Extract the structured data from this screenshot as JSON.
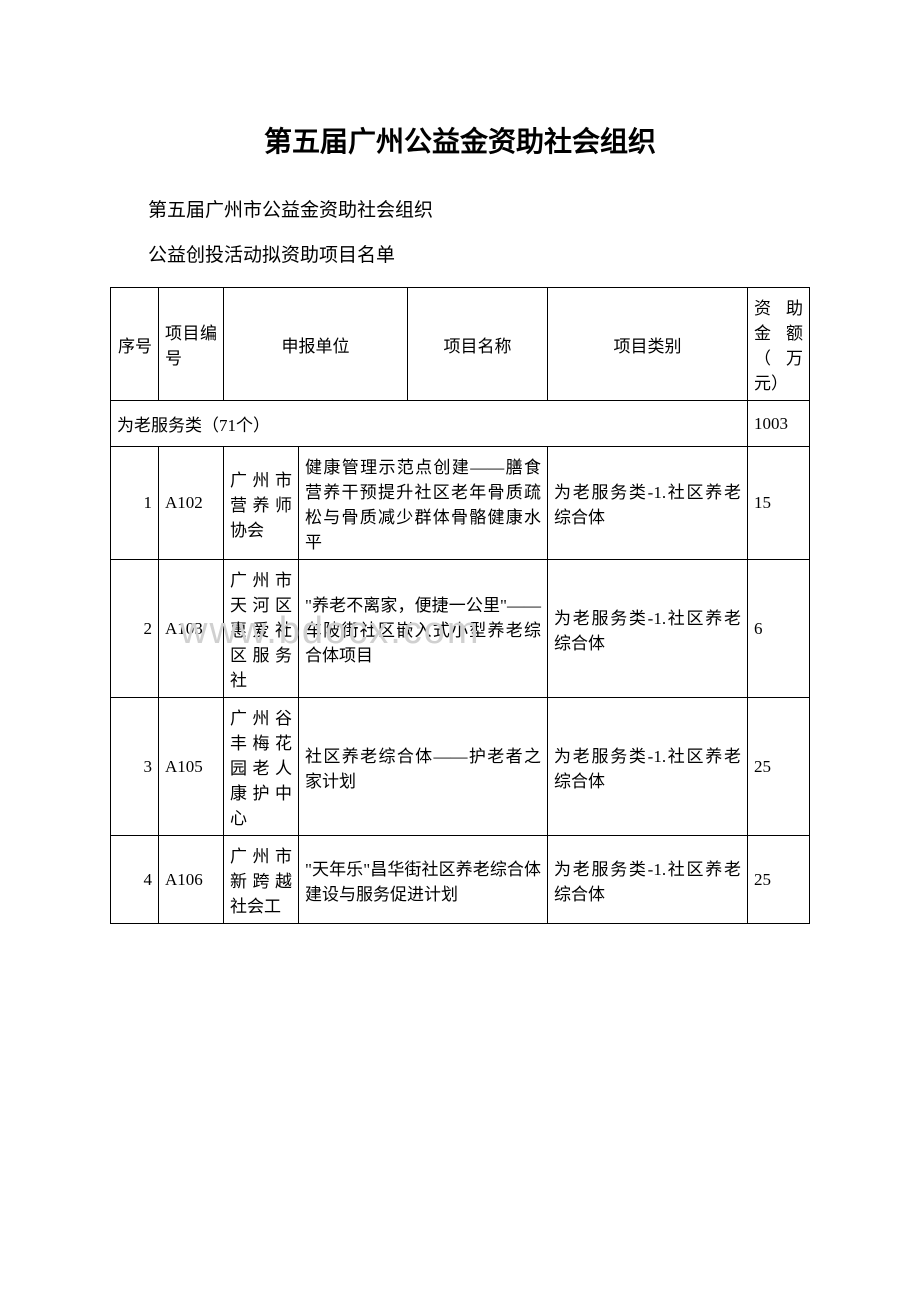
{
  "title": "第五届广州公益金资助社会组织",
  "subtitle_line1": "第五届广州市公益金资助社会组织",
  "subtitle_line2": "公益创投活动拟资助项目名单",
  "watermark": "www.bdocx.com",
  "headers": {
    "seq": "序号",
    "code": "项目编号",
    "org": "申报单位",
    "project": "项目名称",
    "category": "项目类别",
    "amount": "资助金额（万元）"
  },
  "category_row": {
    "label": "为老服务类（71个）",
    "total": "1003"
  },
  "rows": [
    {
      "seq": "1",
      "code": "A102",
      "org": "广州市营养师协会",
      "project": "健康管理示范点创建——膳食营养干预提升社区老年骨质疏松与骨质减少群体骨骼健康水平",
      "category": "为老服务类-1.社区养老综合体",
      "amount": "15"
    },
    {
      "seq": "2",
      "code": "A103",
      "org": "广州市天河区惠爱社区服务社",
      "project": "\"养老不离家，便捷一公里\"——车陂街社区嵌入式小型养老综合体项目",
      "category": "为老服务类-1.社区养老综合体",
      "amount": "6"
    },
    {
      "seq": "3",
      "code": "A105",
      "org": "广州谷丰梅花园老人康护中心",
      "project": "社区养老综合体——护老者之家计划",
      "category": "为老服务类-1.社区养老综合体",
      "amount": "25"
    },
    {
      "seq": "4",
      "code": "A106",
      "org": "广州市新跨越社会工",
      "project": "\"天年乐\"昌华街社区养老综合体建设与服务促进计划",
      "category": "为老服务类-1.社区养老综合体",
      "amount": "25"
    }
  ]
}
